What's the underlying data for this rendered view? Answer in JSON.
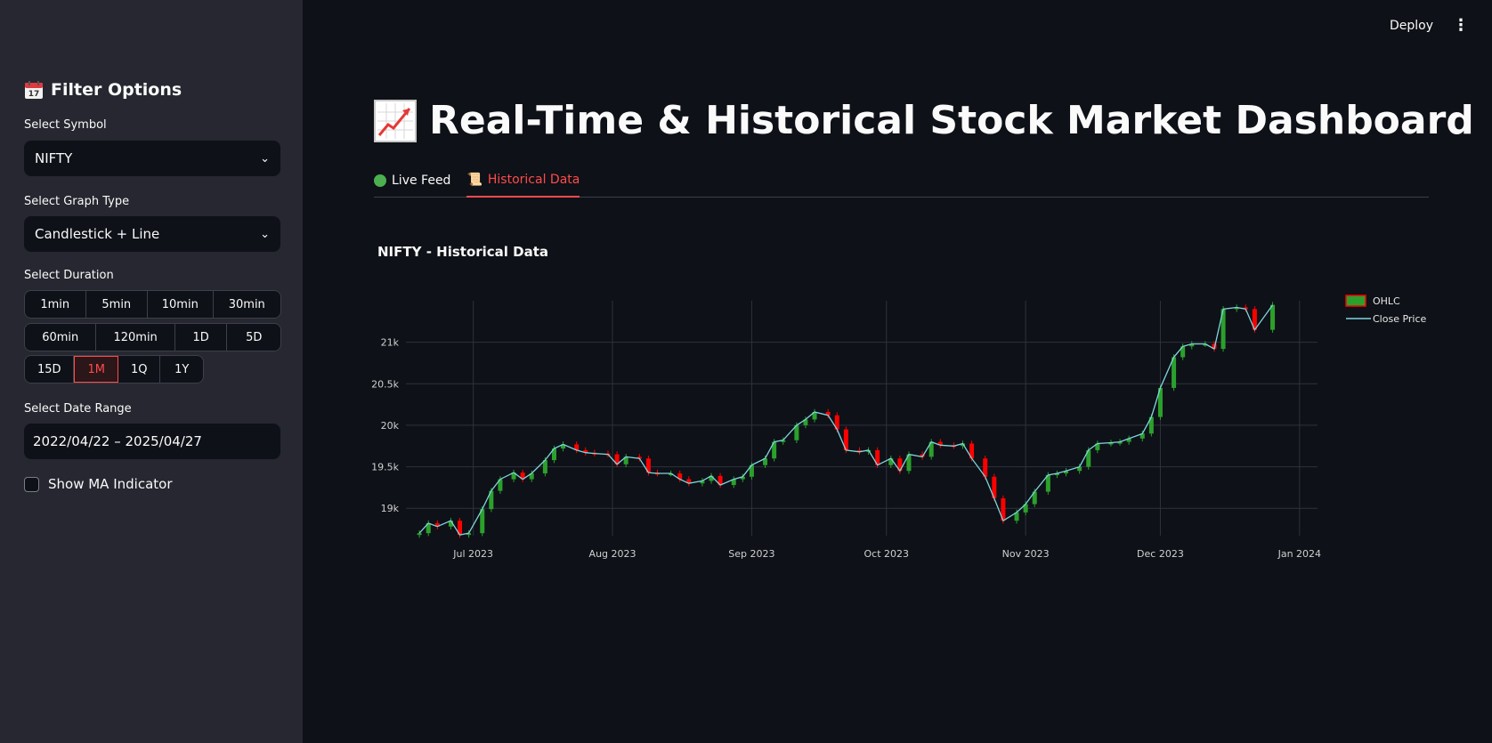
{
  "sidebar": {
    "title": "Filter Options",
    "symbol_label": "Select Symbol",
    "symbol_value": "NIFTY",
    "graph_label": "Select Graph Type",
    "graph_value": "Candlestick + Line",
    "duration_label": "Select Duration",
    "duration_rows": [
      [
        "1min",
        "5min",
        "10min",
        "30min"
      ],
      [
        "60min",
        "120min",
        "1D",
        "5D"
      ],
      [
        "15D",
        "1M",
        "1Q",
        "1Y"
      ]
    ],
    "duration_selected": "1M",
    "date_label": "Select Date Range",
    "date_value": "2022/04/22 – 2025/04/27",
    "ma_label": "Show MA Indicator"
  },
  "topbar": {
    "deploy": "Deploy"
  },
  "main": {
    "title": "Real-Time & Historical Stock Market Dashboard",
    "tabs": [
      {
        "label": "Live Feed",
        "icon": "green-circle-icon"
      },
      {
        "label": "Historical Data",
        "icon": "scroll-icon"
      }
    ],
    "active_tab": "Historical Data",
    "chart_title": "NIFTY - Historical Data"
  },
  "colors": {
    "accent": "#ff4b4b",
    "increasing": "#2ca02c",
    "decreasing": "#ff0000",
    "close_line": "#7fd6e0"
  },
  "chart_data": {
    "type": "line",
    "ylim": [
      18670,
      21500
    ],
    "y_ticks": [
      19000,
      19500,
      20000,
      20500,
      21000
    ],
    "y_tick_labels": [
      "19k",
      "19.5k",
      "20k",
      "20.5k",
      "21k"
    ],
    "x_tick_labels": [
      "Jul 2023",
      "Aug 2023",
      "Sep 2023",
      "Oct 2023",
      "Nov 2023",
      "Dec 2023",
      "Jan 2024"
    ],
    "legend": [
      "OHLC",
      "Close Price"
    ],
    "legend_position": "top-right",
    "grid": true,
    "series": [
      {
        "name": "Close Price",
        "x": [
          "2023-06-19",
          "2023-06-21",
          "2023-06-23",
          "2023-06-26",
          "2023-06-28",
          "2023-06-30",
          "2023-07-03",
          "2023-07-05",
          "2023-07-07",
          "2023-07-10",
          "2023-07-12",
          "2023-07-14",
          "2023-07-17",
          "2023-07-19",
          "2023-07-21",
          "2023-07-24",
          "2023-07-26",
          "2023-07-28",
          "2023-07-31",
          "2023-08-02",
          "2023-08-04",
          "2023-08-07",
          "2023-08-09",
          "2023-08-11",
          "2023-08-14",
          "2023-08-16",
          "2023-08-18",
          "2023-08-21",
          "2023-08-23",
          "2023-08-25",
          "2023-08-28",
          "2023-08-30",
          "2023-09-01",
          "2023-09-04",
          "2023-09-06",
          "2023-09-08",
          "2023-09-11",
          "2023-09-13",
          "2023-09-15",
          "2023-09-18",
          "2023-09-20",
          "2023-09-22",
          "2023-09-25",
          "2023-09-27",
          "2023-09-29",
          "2023-10-02",
          "2023-10-04",
          "2023-10-06",
          "2023-10-09",
          "2023-10-11",
          "2023-10-13",
          "2023-10-16",
          "2023-10-18",
          "2023-10-20",
          "2023-10-23",
          "2023-10-25",
          "2023-10-27",
          "2023-10-30",
          "2023-11-01",
          "2023-11-03",
          "2023-11-06",
          "2023-11-08",
          "2023-11-10",
          "2023-11-13",
          "2023-11-15",
          "2023-11-17",
          "2023-11-20",
          "2023-11-22",
          "2023-11-24",
          "2023-11-27",
          "2023-11-29",
          "2023-12-01",
          "2023-12-04",
          "2023-12-06",
          "2023-12-08",
          "2023-12-11",
          "2023-12-13",
          "2023-12-15",
          "2023-12-18",
          "2023-12-20",
          "2023-12-22",
          "2023-12-26"
        ],
        "y": [
          18700,
          18820,
          18780,
          18850,
          18680,
          18700,
          18990,
          19210,
          19350,
          19430,
          19350,
          19420,
          19580,
          19720,
          19770,
          19700,
          19670,
          19660,
          19650,
          19530,
          19620,
          19600,
          19430,
          19420,
          19420,
          19350,
          19300,
          19330,
          19390,
          19280,
          19350,
          19380,
          19520,
          19600,
          19800,
          19820,
          20000,
          20070,
          20160,
          20120,
          19950,
          19700,
          19680,
          19700,
          19520,
          19600,
          19450,
          19650,
          19620,
          19800,
          19760,
          19750,
          19780,
          19600,
          19380,
          19120,
          18850,
          18950,
          19050,
          19200,
          19400,
          19420,
          19450,
          19500,
          19700,
          19780,
          19790,
          19800,
          19840,
          19900,
          20100,
          20450,
          20820,
          20950,
          20980,
          20980,
          20920,
          21400,
          21420,
          21400,
          21150,
          21450
        ]
      }
    ]
  }
}
